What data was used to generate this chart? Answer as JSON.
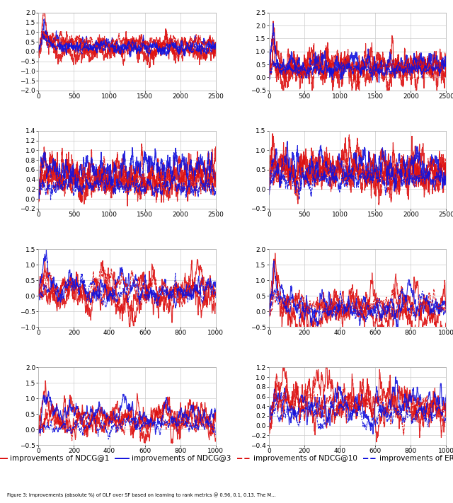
{
  "subplots": [
    {
      "xlim": [
        0,
        2500
      ],
      "ylim": [
        -2.0,
        2.0
      ],
      "xticks": [
        0,
        500,
        1000,
        1500,
        2000,
        2500
      ],
      "yticks": [
        -2.0,
        -1.5,
        -1.0,
        -0.5,
        0.0,
        0.5,
        1.0,
        1.5,
        2.0
      ],
      "n": 2500,
      "curves": [
        {
          "color": "#dd1111",
          "lw": 0.8,
          "ls": "-",
          "seed": 1,
          "peak": 1.95,
          "peak_x": 80,
          "final": 0.18,
          "sigma": 0.09,
          "theta": 0.008
        },
        {
          "color": "#dd1111",
          "lw": 0.8,
          "ls": "-",
          "seed": 2,
          "peak": 1.2,
          "peak_x": 80,
          "final": 0.05,
          "sigma": 0.09,
          "theta": 0.008
        },
        {
          "color": "#1111dd",
          "lw": 0.8,
          "ls": "-",
          "seed": 3,
          "peak": 1.48,
          "peak_x": 80,
          "final": 0.28,
          "sigma": 0.06,
          "theta": 0.006
        },
        {
          "color": "#dd1111",
          "lw": 0.7,
          "ls": "--",
          "seed": 4,
          "peak": 0.8,
          "peak_x": 60,
          "final": 0.48,
          "sigma": 0.05,
          "theta": 0.004
        },
        {
          "color": "#1111dd",
          "lw": 0.7,
          "ls": "--",
          "seed": 5,
          "peak": 0.7,
          "peak_x": 60,
          "final": 0.22,
          "sigma": 0.04,
          "theta": 0.003
        }
      ]
    },
    {
      "xlim": [
        0,
        2500
      ],
      "ylim": [
        -0.5,
        2.5
      ],
      "xticks": [
        0,
        500,
        1000,
        1500,
        2000,
        2500
      ],
      "yticks": [
        -0.5,
        0.0,
        0.5,
        1.0,
        1.5,
        2.0,
        2.5
      ],
      "n": 2500,
      "curves": [
        {
          "color": "#dd1111",
          "lw": 0.8,
          "ls": "-",
          "seed": 11,
          "peak": 2.05,
          "peak_x": 60,
          "final": 0.5,
          "sigma": 0.1,
          "theta": 0.01
        },
        {
          "color": "#dd1111",
          "lw": 0.8,
          "ls": "-",
          "seed": 12,
          "peak": 1.55,
          "peak_x": 60,
          "final": 0.25,
          "sigma": 0.1,
          "theta": 0.01
        },
        {
          "color": "#1111dd",
          "lw": 0.8,
          "ls": "-",
          "seed": 13,
          "peak": 1.85,
          "peak_x": 60,
          "final": 0.48,
          "sigma": 0.07,
          "theta": 0.008
        },
        {
          "color": "#dd1111",
          "lw": 0.7,
          "ls": "--",
          "seed": 14,
          "peak": 0.75,
          "peak_x": 50,
          "final": 0.38,
          "sigma": 0.05,
          "theta": 0.005
        },
        {
          "color": "#1111dd",
          "lw": 0.7,
          "ls": "--",
          "seed": 15,
          "peak": 0.55,
          "peak_x": 50,
          "final": 0.33,
          "sigma": 0.04,
          "theta": 0.004
        }
      ]
    },
    {
      "xlim": [
        0,
        2500
      ],
      "ylim": [
        -0.2,
        1.4
      ],
      "xticks": [
        0,
        500,
        1000,
        1500,
        2000,
        2500
      ],
      "yticks": [
        -0.2,
        0.0,
        0.2,
        0.4,
        0.6,
        0.8,
        1.0,
        1.2,
        1.4
      ],
      "n": 2500,
      "curves": [
        {
          "color": "#dd1111",
          "lw": 0.8,
          "ls": "-",
          "seed": 21,
          "peak": 0.65,
          "peak_x": 40,
          "final": 0.5,
          "sigma": 0.06,
          "theta": 0.003
        },
        {
          "color": "#dd1111",
          "lw": 0.8,
          "ls": "-",
          "seed": 22,
          "peak": 0.52,
          "peak_x": 40,
          "final": 0.4,
          "sigma": 0.06,
          "theta": 0.003
        },
        {
          "color": "#1111dd",
          "lw": 0.8,
          "ls": "-",
          "seed": 23,
          "peak": 0.68,
          "peak_x": 30,
          "final": 0.65,
          "sigma": 0.05,
          "theta": 0.002
        },
        {
          "color": "#dd1111",
          "lw": 0.7,
          "ls": "--",
          "seed": 24,
          "peak": 0.45,
          "peak_x": 30,
          "final": 0.4,
          "sigma": 0.04,
          "theta": 0.002
        },
        {
          "color": "#1111dd",
          "lw": 0.7,
          "ls": "--",
          "seed": 25,
          "peak": 0.28,
          "peak_x": 30,
          "final": 0.25,
          "sigma": 0.03,
          "theta": 0.002
        }
      ]
    },
    {
      "xlim": [
        0,
        2500
      ],
      "ylim": [
        -0.5,
        1.5
      ],
      "xticks": [
        0,
        500,
        1000,
        1500,
        2000,
        2500
      ],
      "yticks": [
        -0.5,
        0.0,
        0.5,
        1.0,
        1.5
      ],
      "n": 2500,
      "curves": [
        {
          "color": "#dd1111",
          "lw": 0.8,
          "ls": "-",
          "seed": 31,
          "peak": 1.45,
          "peak_x": 50,
          "final": 0.52,
          "sigma": 0.08,
          "theta": 0.007
        },
        {
          "color": "#dd1111",
          "lw": 0.8,
          "ls": "-",
          "seed": 32,
          "peak": 0.75,
          "peak_x": 50,
          "final": 0.42,
          "sigma": 0.08,
          "theta": 0.007
        },
        {
          "color": "#1111dd",
          "lw": 0.8,
          "ls": "-",
          "seed": 33,
          "peak": 0.9,
          "peak_x": 40,
          "final": 0.56,
          "sigma": 0.06,
          "theta": 0.005
        },
        {
          "color": "#dd1111",
          "lw": 0.7,
          "ls": "--",
          "seed": 34,
          "peak": 0.55,
          "peak_x": 40,
          "final": 0.46,
          "sigma": 0.05,
          "theta": 0.004
        },
        {
          "color": "#1111dd",
          "lw": 0.7,
          "ls": "--",
          "seed": 35,
          "peak": 0.3,
          "peak_x": 40,
          "final": 0.27,
          "sigma": 0.04,
          "theta": 0.003
        }
      ]
    },
    {
      "xlim": [
        0,
        1000
      ],
      "ylim": [
        -1.0,
        1.5
      ],
      "xticks": [
        0,
        200,
        400,
        600,
        800,
        1000
      ],
      "yticks": [
        -1.0,
        -0.5,
        0.0,
        0.5,
        1.0,
        1.5
      ],
      "n": 1000,
      "curves": [
        {
          "color": "#dd1111",
          "lw": 0.8,
          "ls": "-",
          "seed": 41,
          "peak": 1.45,
          "peak_x": 40,
          "final": 0.12,
          "sigma": 0.12,
          "theta": 0.015
        },
        {
          "color": "#dd1111",
          "lw": 0.8,
          "ls": "-",
          "seed": 42,
          "peak": 0.8,
          "peak_x": 40,
          "final": -0.08,
          "sigma": 0.12,
          "theta": 0.015
        },
        {
          "color": "#1111dd",
          "lw": 0.8,
          "ls": "-",
          "seed": 43,
          "peak": 1.12,
          "peak_x": 35,
          "final": 0.22,
          "sigma": 0.08,
          "theta": 0.012
        },
        {
          "color": "#dd1111",
          "lw": 0.7,
          "ls": "--",
          "seed": 44,
          "peak": 0.9,
          "peak_x": 30,
          "final": 0.28,
          "sigma": 0.07,
          "theta": 0.01
        },
        {
          "color": "#1111dd",
          "lw": 0.7,
          "ls": "--",
          "seed": 45,
          "peak": 0.55,
          "peak_x": 30,
          "final": 0.15,
          "sigma": 0.06,
          "theta": 0.008
        }
      ]
    },
    {
      "xlim": [
        0,
        1000
      ],
      "ylim": [
        -0.5,
        2.0
      ],
      "xticks": [
        0,
        200,
        400,
        600,
        800,
        1000
      ],
      "yticks": [
        -0.5,
        0.0,
        0.5,
        1.0,
        1.5,
        2.0
      ],
      "n": 1000,
      "curves": [
        {
          "color": "#dd1111",
          "lw": 0.8,
          "ls": "-",
          "seed": 51,
          "peak": 1.55,
          "peak_x": 35,
          "final": 0.08,
          "sigma": 0.12,
          "theta": 0.018
        },
        {
          "color": "#dd1111",
          "lw": 0.8,
          "ls": "-",
          "seed": 52,
          "peak": 1.1,
          "peak_x": 35,
          "final": -0.1,
          "sigma": 0.12,
          "theta": 0.018
        },
        {
          "color": "#1111dd",
          "lw": 0.8,
          "ls": "-",
          "seed": 53,
          "peak": 1.42,
          "peak_x": 30,
          "final": 0.18,
          "sigma": 0.08,
          "theta": 0.015
        },
        {
          "color": "#dd1111",
          "lw": 0.7,
          "ls": "--",
          "seed": 54,
          "peak": 0.8,
          "peak_x": 30,
          "final": 0.2,
          "sigma": 0.07,
          "theta": 0.012
        },
        {
          "color": "#1111dd",
          "lw": 0.7,
          "ls": "--",
          "seed": 55,
          "peak": 0.6,
          "peak_x": 30,
          "final": 0.08,
          "sigma": 0.06,
          "theta": 0.01
        }
      ]
    },
    {
      "xlim": [
        0,
        1000
      ],
      "ylim": [
        -0.5,
        2.0
      ],
      "xticks": [
        0,
        200,
        400,
        600,
        800,
        1000
      ],
      "yticks": [
        -0.5,
        0.0,
        0.5,
        1.0,
        1.5,
        2.0
      ],
      "n": 1000,
      "curves": [
        {
          "color": "#dd1111",
          "lw": 0.8,
          "ls": "-",
          "seed": 61,
          "peak": 1.8,
          "peak_x": 40,
          "final": 0.38,
          "sigma": 0.1,
          "theta": 0.012
        },
        {
          "color": "#dd1111",
          "lw": 0.8,
          "ls": "-",
          "seed": 62,
          "peak": 0.9,
          "peak_x": 40,
          "final": 0.26,
          "sigma": 0.1,
          "theta": 0.012
        },
        {
          "color": "#1111dd",
          "lw": 0.8,
          "ls": "-",
          "seed": 63,
          "peak": 1.12,
          "peak_x": 35,
          "final": 0.4,
          "sigma": 0.07,
          "theta": 0.01
        },
        {
          "color": "#dd1111",
          "lw": 0.7,
          "ls": "--",
          "seed": 64,
          "peak": 0.65,
          "peak_x": 35,
          "final": 0.32,
          "sigma": 0.06,
          "theta": 0.008
        },
        {
          "color": "#1111dd",
          "lw": 0.7,
          "ls": "--",
          "seed": 65,
          "peak": 0.2,
          "peak_x": 30,
          "final": 0.14,
          "sigma": 0.05,
          "theta": 0.006
        }
      ]
    },
    {
      "xlim": [
        0,
        1000
      ],
      "ylim": [
        -0.4,
        1.2
      ],
      "xticks": [
        0,
        200,
        400,
        600,
        800,
        1000
      ],
      "yticks": [
        -0.4,
        -0.2,
        0.0,
        0.2,
        0.4,
        0.6,
        0.8,
        1.0,
        1.2
      ],
      "n": 1000,
      "curves": [
        {
          "color": "#dd1111",
          "lw": 0.8,
          "ls": "-",
          "seed": 71,
          "peak": 0.85,
          "peak_x": 35,
          "final": 0.58,
          "sigma": 0.08,
          "theta": 0.006
        },
        {
          "color": "#dd1111",
          "lw": 0.8,
          "ls": "-",
          "seed": 72,
          "peak": 0.55,
          "peak_x": 35,
          "final": 0.36,
          "sigma": 0.08,
          "theta": 0.006
        },
        {
          "color": "#1111dd",
          "lw": 0.8,
          "ls": "-",
          "seed": 73,
          "peak": 0.58,
          "peak_x": 30,
          "final": 0.44,
          "sigma": 0.06,
          "theta": 0.005
        },
        {
          "color": "#dd1111",
          "lw": 0.7,
          "ls": "--",
          "seed": 74,
          "peak": 0.48,
          "peak_x": 30,
          "final": 0.4,
          "sigma": 0.05,
          "theta": 0.004
        },
        {
          "color": "#1111dd",
          "lw": 0.7,
          "ls": "--",
          "seed": 75,
          "peak": 0.22,
          "peak_x": 25,
          "final": 0.2,
          "sigma": 0.04,
          "theta": 0.003
        }
      ]
    }
  ],
  "legend": [
    {
      "label": "improvements of NDCG@1",
      "color": "#dd1111",
      "ls": "-",
      "lw": 1.4
    },
    {
      "label": "improvements of NDCG@3",
      "color": "#1111dd",
      "ls": "-",
      "lw": 1.4
    },
    {
      "label": "improvements of NDCG@10",
      "color": "#dd1111",
      "ls": "--",
      "lw": 1.4
    },
    {
      "label": "improvements of ERR",
      "color": "#1111dd",
      "ls": "--",
      "lw": 1.4
    }
  ],
  "bg_color": "#ffffff",
  "grid_color": "#cccccc",
  "tick_fontsize": 6.5,
  "legend_fontsize": 7.5
}
